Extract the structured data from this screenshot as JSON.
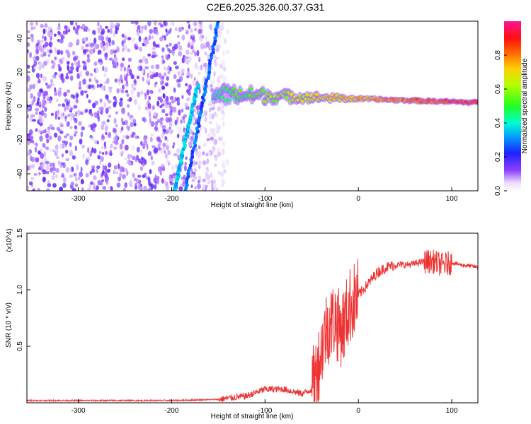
{
  "title": "C2E6.2025.326.00.37.G31",
  "chart_data": [
    {
      "type": "heatmap",
      "xlabel": "Height of straight line (km)",
      "ylabel": "Frequency (Hz)",
      "xlim": [
        -355,
        128
      ],
      "ylim": [
        -50,
        50
      ],
      "xticks": [
        -300,
        -200,
        -100,
        0,
        100
      ],
      "yticks": [
        -40,
        -20,
        0,
        20,
        40
      ],
      "colorbar": {
        "label": "Normalized spectral amplitude",
        "range": [
          0,
          1
        ],
        "ticks": [
          "0.0",
          "0.2",
          "0.4",
          "0.6",
          "0.8"
        ],
        "colormap": "rainbow (white-purple-blue-cyan-green-yellow-red-magenta)"
      },
      "features": [
        {
          "name": "diagonal track A",
          "x": [
            -197,
            -172
          ],
          "y": [
            -50,
            12
          ],
          "amplitude": 0.3
        },
        {
          "name": "diagonal track B",
          "x": [
            -185,
            -150
          ],
          "y": [
            -50,
            50
          ],
          "amplitude": 0.22
        },
        {
          "name": "carrier band",
          "x": [
            -155,
            128
          ],
          "y": [
            7,
            2
          ],
          "amplitude_start": 0.4,
          "amplitude_end": 0.9
        },
        {
          "name": "noise region",
          "x": [
            -355,
            -140
          ],
          "y": [
            -50,
            50
          ],
          "amplitude": 0.12
        }
      ]
    },
    {
      "type": "line",
      "xlabel": "Height of straight line (km)",
      "ylabel": "SNR (10 * v/v)",
      "yunit": "(x10^4)",
      "xlim": [
        -355,
        128
      ],
      "ylim": [
        0,
        1.5
      ],
      "xticks": [
        -300,
        -200,
        -100,
        0,
        100
      ],
      "yticks": [
        "0.5",
        "1.0",
        "1.5"
      ],
      "color": "#ee3333",
      "series": [
        {
          "x": [
            -355,
            -300,
            -250,
            -200,
            -150,
            -120,
            -100,
            -80,
            -60,
            -50,
            -45,
            -40,
            -35,
            -30,
            -25,
            -20,
            -15,
            -10,
            -5,
            0,
            10,
            20,
            30,
            40,
            50,
            60,
            70,
            80,
            90,
            100,
            110,
            128
          ],
          "values": [
            0.02,
            0.02,
            0.02,
            0.02,
            0.03,
            0.06,
            0.12,
            0.12,
            0.08,
            0.12,
            0.25,
            0.45,
            0.65,
            0.7,
            0.75,
            0.65,
            0.7,
            0.85,
            0.9,
            0.95,
            1.05,
            1.15,
            1.2,
            1.22,
            1.22,
            1.23,
            1.25,
            1.25,
            1.22,
            1.24,
            1.22,
            1.2
          ]
        }
      ]
    }
  ]
}
